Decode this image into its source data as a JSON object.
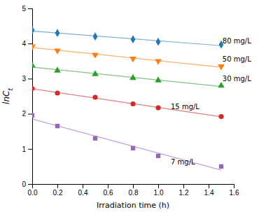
{
  "chart_data": {
    "type": "scatter",
    "xlabel": "Irradiation time (h)",
    "ylabel": "lnCt",
    "xlim": [
      0.0,
      1.6
    ],
    "ylim": [
      0.0,
      5.0
    ],
    "xticks": [
      {
        "value": 0,
        "label": "0.0"
      },
      0.2,
      0.4,
      0.6,
      0.8,
      {
        "value": 1,
        "label": "1.0"
      },
      1.2,
      1.4,
      1.6
    ],
    "yticks": [
      0,
      1,
      2,
      3,
      4,
      5
    ],
    "series": [
      {
        "name": "80 mg/L",
        "marker": "diamond",
        "x": [
          0.0,
          0.2,
          0.5,
          0.8,
          1.0,
          1.5
        ],
        "values": [
          4.38,
          4.3,
          4.2,
          4.12,
          4.05,
          3.97
        ],
        "fit_x": [
          0.0,
          1.5
        ],
        "fit_values": [
          4.3546,
          3.9393
        ],
        "label_x": 1.51,
        "label_y": 4.08
      },
      {
        "name": "50 mg/L",
        "marker": "triangle-down",
        "x": [
          0.0,
          0.2,
          0.5,
          0.8,
          1.0,
          1.5
        ],
        "values": [
          3.92,
          3.8,
          3.68,
          3.57,
          3.5,
          3.35
        ],
        "fit_x": [
          0.0,
          1.5
        ],
        "fit_values": [
          3.8859,
          3.3252
        ],
        "label_x": 1.51,
        "label_y": 3.55
      },
      {
        "name": "30 mg/L",
        "marker": "triangle-up",
        "x": [
          0.0,
          0.2,
          0.5,
          0.8,
          1.0,
          1.5
        ],
        "values": [
          3.37,
          3.23,
          3.13,
          3.02,
          2.95,
          2.8
        ],
        "fit_x": [
          0.0,
          1.5
        ],
        "fit_values": [
          3.3284,
          2.777
        ],
        "label_x": 1.51,
        "label_y": 3.0
      },
      {
        "name": "15 mg/L",
        "marker": "circle",
        "x": [
          0.0,
          0.2,
          0.5,
          0.8,
          1.0,
          1.5
        ],
        "values": [
          2.72,
          2.59,
          2.47,
          2.28,
          2.17,
          1.92
        ],
        "fit_x": [
          0.0,
          1.5
        ],
        "fit_values": [
          2.7135,
          1.9143
        ],
        "label_x": 1.1,
        "label_y": 2.2
      },
      {
        "name": "7 mg/L",
        "marker": "square",
        "x": [
          0.0,
          0.2,
          0.5,
          0.8,
          1.0,
          1.5
        ],
        "values": [
          1.95,
          1.65,
          1.3,
          1.02,
          0.8,
          0.5
        ],
        "fit_x": [
          0.0,
          1.5
        ],
        "fit_values": [
          1.8497,
          0.3953
        ],
        "label_x": 1.1,
        "label_y": 0.62
      }
    ]
  }
}
